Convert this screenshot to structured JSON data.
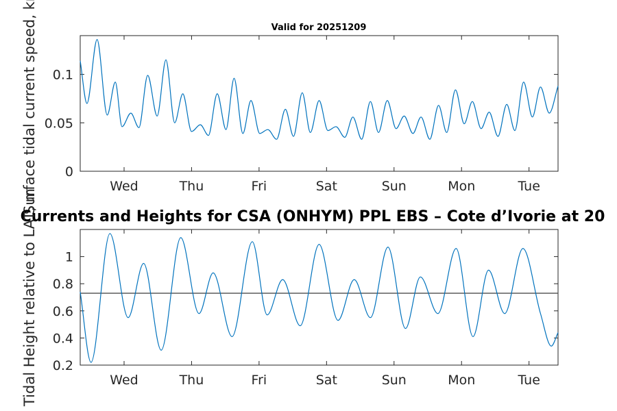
{
  "chart_data": [
    {
      "type": "line",
      "title": "Valid for 20251209",
      "ylabel": "Surface tidal current speed, kn",
      "xlabel": "",
      "x_tick_labels": [
        "Wed",
        "Thu",
        "Fri",
        "Sat",
        "Sun",
        "Mon",
        "Tue"
      ],
      "x_tick_days": [
        0.65,
        1.65,
        2.65,
        3.65,
        4.65,
        5.65,
        6.65
      ],
      "xlim_days": [
        0,
        7.08
      ],
      "y_ticks": [
        0,
        0.05,
        0.1
      ],
      "y_tick_labels": [
        "0",
        "0.05",
        "0.1"
      ],
      "ylim": [
        0,
        0.14
      ],
      "series": [
        {
          "name": "Surface tidal current speed",
          "color": "#0072bd",
          "x": [
            0,
            0.1,
            0.25,
            0.4,
            0.52,
            0.62,
            0.75,
            0.87,
            1.0,
            1.14,
            1.27,
            1.4,
            1.52,
            1.65,
            1.78,
            1.9,
            2.03,
            2.16,
            2.28,
            2.41,
            2.53,
            2.66,
            2.78,
            2.91,
            3.04,
            3.16,
            3.29,
            3.41,
            3.54,
            3.67,
            3.79,
            3.92,
            4.04,
            4.17,
            4.3,
            4.42,
            4.55,
            4.68,
            4.8,
            4.93,
            5.05,
            5.18,
            5.31,
            5.43,
            5.56,
            5.69,
            5.81,
            5.94,
            6.06,
            6.19,
            6.32,
            6.44,
            6.57,
            6.7,
            6.82,
            6.95,
            7.08
          ],
          "y": [
            0.114,
            0.07,
            0.136,
            0.058,
            0.092,
            0.046,
            0.06,
            0.045,
            0.099,
            0.057,
            0.115,
            0.05,
            0.08,
            0.041,
            0.048,
            0.037,
            0.08,
            0.043,
            0.096,
            0.039,
            0.073,
            0.039,
            0.043,
            0.033,
            0.064,
            0.036,
            0.081,
            0.04,
            0.073,
            0.042,
            0.046,
            0.035,
            0.056,
            0.033,
            0.072,
            0.04,
            0.073,
            0.044,
            0.057,
            0.039,
            0.056,
            0.033,
            0.068,
            0.04,
            0.084,
            0.049,
            0.072,
            0.044,
            0.061,
            0.036,
            0.069,
            0.042,
            0.092,
            0.056,
            0.087,
            0.06,
            0.088
          ]
        }
      ]
    },
    {
      "type": "line",
      "title": "Currents and Heights for CSA (ONHYM) PPL EBS  – Cote d’Ivorie at 20",
      "ylabel": "Tidal Height relative to LAT, m",
      "xlabel": "",
      "x_tick_labels": [
        "Wed",
        "Thu",
        "Fri",
        "Sat",
        "Sun",
        "Mon",
        "Tue"
      ],
      "x_tick_days": [
        0.65,
        1.65,
        2.65,
        3.65,
        4.65,
        5.65,
        6.65
      ],
      "xlim_days": [
        0,
        7.08
      ],
      "y_ticks": [
        0.2,
        0.4,
        0.6,
        0.8,
        1
      ],
      "y_tick_labels": [
        "0.2",
        "0.4",
        "0.6",
        "0.8",
        "1"
      ],
      "ylim": [
        0.2,
        1.2
      ],
      "reference_line": {
        "y": 0.73,
        "color": "#4d4d4d"
      },
      "series": [
        {
          "name": "Tidal height",
          "color": "#0072bd",
          "x": [
            0,
            0.16,
            0.44,
            0.71,
            0.94,
            1.2,
            1.49,
            1.76,
            1.97,
            2.25,
            2.55,
            2.77,
            3.0,
            3.26,
            3.54,
            3.82,
            4.06,
            4.3,
            4.56,
            4.82,
            5.04,
            5.3,
            5.57,
            5.82,
            6.05,
            6.29,
            6.56,
            6.82,
            6.98,
            7.08
          ],
          "y": [
            0.74,
            0.22,
            1.17,
            0.55,
            0.95,
            0.31,
            1.14,
            0.58,
            0.88,
            0.41,
            1.11,
            0.57,
            0.83,
            0.49,
            1.09,
            0.53,
            0.83,
            0.55,
            1.07,
            0.47,
            0.85,
            0.58,
            1.06,
            0.41,
            0.9,
            0.58,
            1.06,
            0.58,
            0.34,
            0.44
          ]
        }
      ]
    }
  ]
}
